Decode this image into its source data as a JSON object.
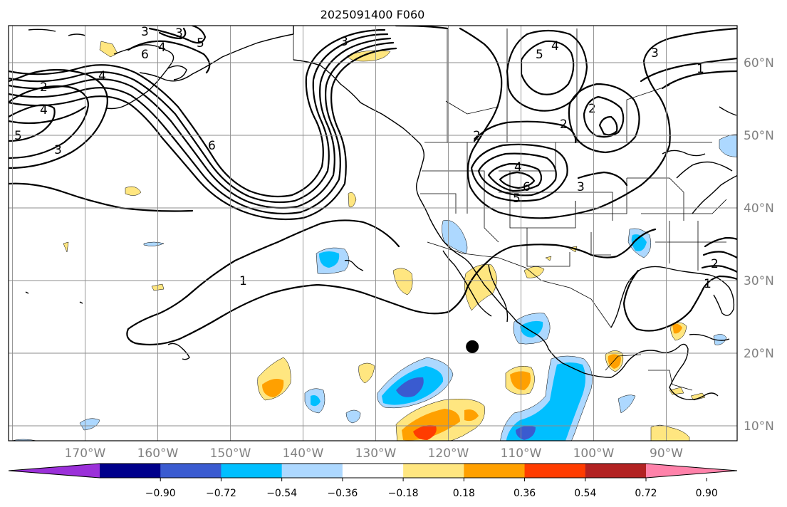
{
  "map": {
    "title": "2025091400 F060",
    "longitude_labels": [
      "170°W",
      "160°W",
      "150°W",
      "140°W",
      "130°W",
      "120°W",
      "110°W",
      "100°W",
      "90°W"
    ],
    "latitude_labels": [
      "60°N",
      "50°N",
      "40°N",
      "30°N",
      "20°N",
      "10°N"
    ],
    "contour_labels": {
      "c1": "1",
      "c2": "2",
      "c3": "3",
      "c4": "4",
      "c5": "5",
      "c6": "6"
    },
    "marker": {
      "name": "storm-position",
      "lon": -116.7,
      "lat": 20.9,
      "color": "#000000"
    }
  },
  "colorbar": {
    "tick_labels": [
      "−0.90",
      "−0.72",
      "−0.54",
      "−0.36",
      "−0.18",
      "0.18",
      "0.36",
      "0.54",
      "0.72",
      "0.90"
    ],
    "colors": [
      "#9b30d9",
      "#00008b",
      "#3a5bd0",
      "#00bfff",
      "#add8ff",
      "#ffffff",
      "#ffe680",
      "#ffa000",
      "#ff3c00",
      "#b22222",
      "#ff82aa"
    ]
  }
}
